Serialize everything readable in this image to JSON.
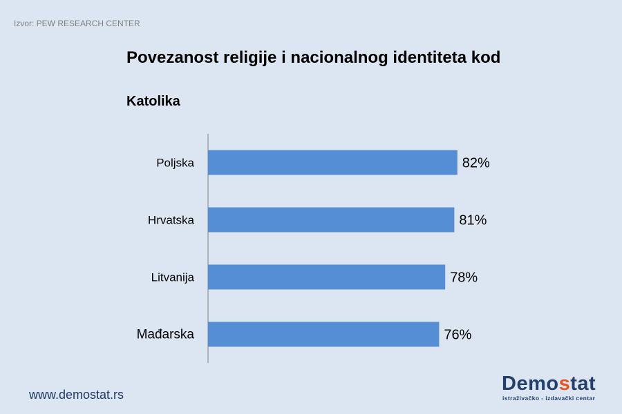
{
  "source": "Izvor: PEW RESEARCH CENTER",
  "footer": {
    "url": "www.demostat.rs",
    "logo": {
      "prefix": "Demo",
      "accent": "s",
      "suffix": "tat",
      "tagline": "istraživačko - izdavački centar"
    }
  },
  "chart_data": {
    "type": "bar",
    "orientation": "horizontal",
    "title": "Povezanost religije i nacionalnog identiteta kod",
    "subtitle": "Katolika",
    "categories": [
      "Poljska",
      "Hrvatska",
      "Litvanija",
      "Mađarska"
    ],
    "values": [
      82,
      81,
      78,
      76
    ],
    "data_labels": [
      "82%",
      "81%",
      "78%",
      "76%"
    ],
    "xlim": [
      0,
      100
    ],
    "grid": false,
    "bar_color": "#558ed5"
  },
  "colors": {
    "background": "#dce6f2",
    "bar": "#558ed5",
    "logo_accent": "#e8541e",
    "logo_main": "#243f6b"
  }
}
